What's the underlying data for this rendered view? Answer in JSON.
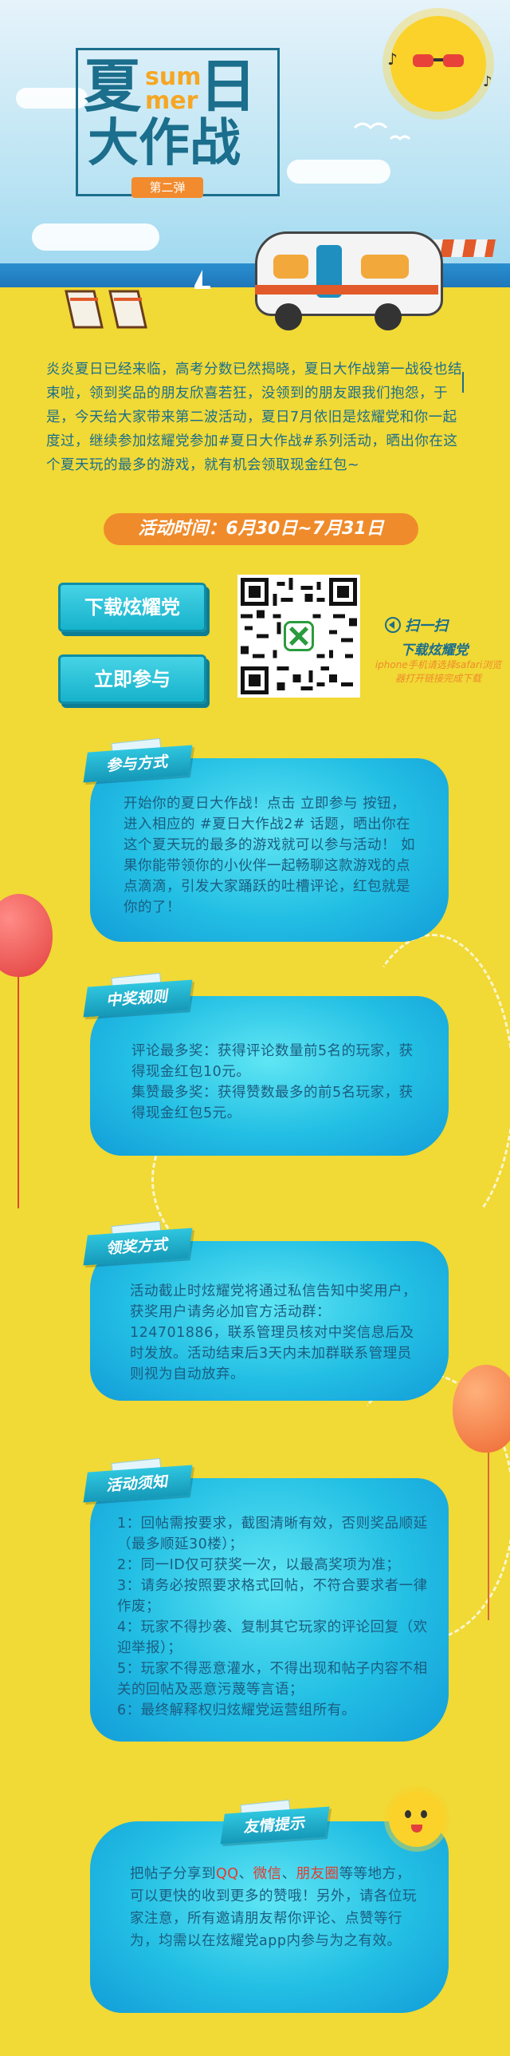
{
  "hero": {
    "title_char1": "夏",
    "title_sum": "sum",
    "title_mer": "mer",
    "title_char2": "日",
    "title_line2": "大作战",
    "edition_badge": "第二弹"
  },
  "intro": {
    "text": "炎炎夏日已经来临，高考分数已然揭晓，夏日大作战第一战役也结束啦，领到奖品的朋友欣喜若狂，没领到的朋友跟我们抱怨，于是，今天给大家带来第二波活动，夏日7月依旧是炫耀党和你一起度过，继续参加炫耀党参加#夏日大作战#系列活动，晒出你在这个夏天玩的最多的游戏，就有机会领取现金红包~",
    "time_label": "活动时间：6月30日~7月31日"
  },
  "cta": {
    "download_label": "下载炫耀党",
    "join_label": "立即参与",
    "scan_title": "扫一扫",
    "scan_sub": "下载炫耀党",
    "scan_note": "iphone手机请选择safari浏览器打开链接完成下载"
  },
  "sections": {
    "participate": {
      "tag": "参与方式",
      "text": "开始你的夏日大作战！点击 立即参与 按钮，进入相应的 #夏日大作战2# 话题，晒出你在这个夏天玩的最多的游戏就可以参与活动！ 如果你能带领你的小伙伴一起畅聊这款游戏的点点滴滴，引发大家踊跃的吐槽评论，红包就是你的了！"
    },
    "rules": {
      "tag": "中奖规则",
      "line1": "评论最多奖：获得评论数量前5名的玩家，获得现金红包10元。",
      "line2": "集赞最多奖：获得赞数最多的前5名玩家，获得现金红包5元。"
    },
    "claim": {
      "tag": "领奖方式",
      "text": "活动截止时炫耀党将通过私信告知中奖用户，获奖用户请务必加官方活动群：124701886，联系管理员核对中奖信息后及时发放。活动结束后3天内未加群联系管理员则视为自动放弃。"
    },
    "notes": {
      "tag": "活动须知",
      "items": [
        "1：回帖需按要求，截图清晰有效，否则奖品顺延（最多顺延30楼）；",
        "2：同一ID仅可获奖一次，以最高奖项为准；",
        "3：请务必按照要求格式回帖，不符合要求者一律作废；",
        "4：玩家不得抄袭、复制其它玩家的评论回复（欢迎举报）；",
        "5：玩家不得恶意灌水，不得出现和帖子内容不相关的回帖及恶意污蔑等言语；",
        "6：最终解释权归炫耀党运营组所有。"
      ]
    },
    "tips": {
      "tag": "友情提示",
      "pre": "把帖子分享到",
      "qq": "QQ",
      "sep1": "、",
      "wechat": "微信",
      "sep2": "、",
      "moments": "朋友圈",
      "post": "等等地方，可以更快的收到更多的赞哦！另外，请各位玩家注意，所有邀请朋友帮你评论、点赞等行为，均需以在炫耀党app内参与为之有效。"
    }
  },
  "colors": {
    "background": "#f1d936",
    "primary_text": "#1b6e8c",
    "accent_orange": "#f08b2b",
    "highlight_red": "#e33a2e",
    "card_cyan": "#23bfe4"
  }
}
